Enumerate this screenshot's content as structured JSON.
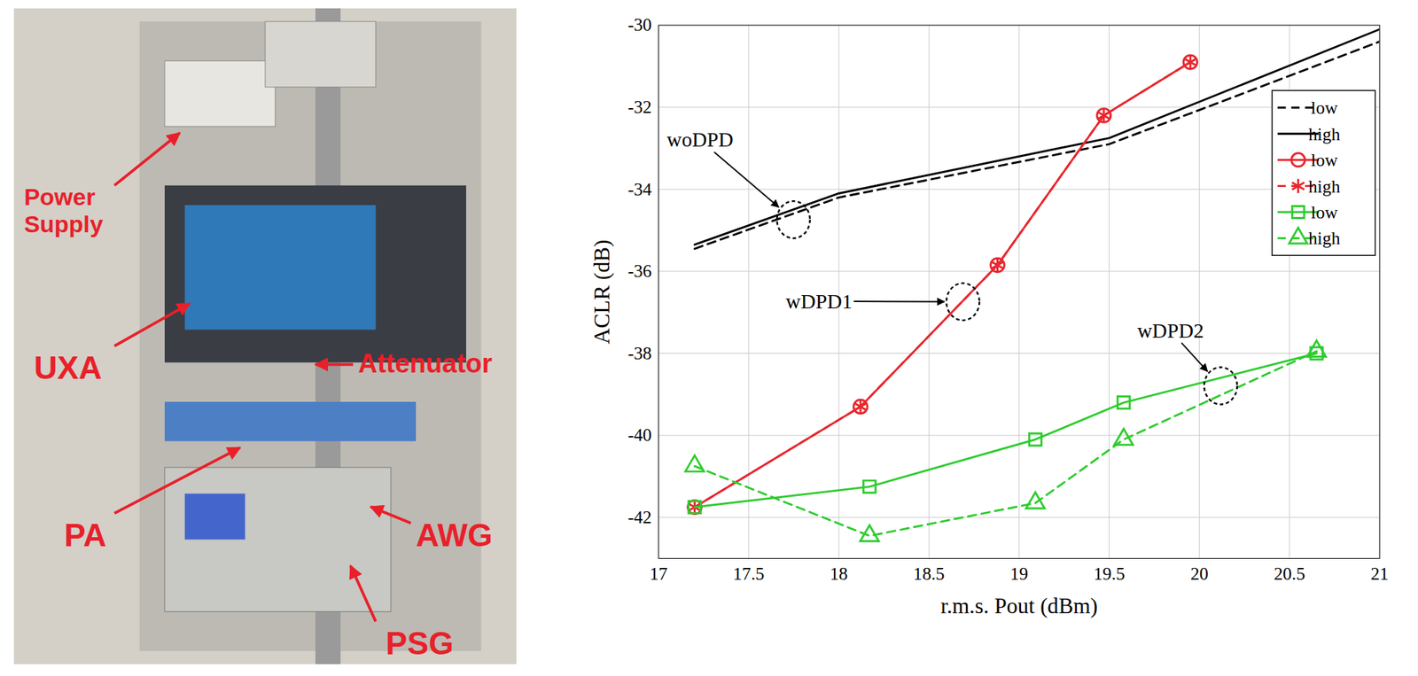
{
  "chart_data": {
    "type": "line",
    "xlabel": "r.m.s. Pout (dBm)",
    "ylabel": "ACLR (dB)",
    "xlim": [
      17,
      21
    ],
    "xticks": [
      17,
      17.5,
      18,
      18.5,
      19,
      19.5,
      20,
      20.5,
      21
    ],
    "ylim": [
      -43,
      -30
    ],
    "yticks": [
      -30,
      -32,
      -34,
      -36,
      -38,
      -40,
      -42
    ],
    "grid": true,
    "legend": "top-right",
    "series": [
      {
        "name": "low",
        "color": "#000000",
        "line_style": "dashed",
        "marker": "none",
        "x": [
          17.2,
          18.0,
          19.5,
          21.0
        ],
        "values": [
          -35.45,
          -34.2,
          -32.9,
          -30.4
        ]
      },
      {
        "name": "high",
        "color": "#000000",
        "line_style": "solid",
        "marker": "none",
        "x": [
          17.2,
          18.0,
          19.5,
          21.0
        ],
        "values": [
          -35.35,
          -34.1,
          -32.75,
          -30.1
        ]
      },
      {
        "name": "low",
        "color": "#e8262e",
        "line_style": "solid",
        "marker": "circle",
        "x": [
          17.2,
          18.12,
          18.88,
          19.47,
          19.95
        ],
        "values": [
          -41.75,
          -39.3,
          -35.85,
          -32.2,
          -30.9
        ]
      },
      {
        "name": "high",
        "color": "#e8262e",
        "line_style": "dashed",
        "marker": "asterisk",
        "x": [
          17.2,
          18.12,
          18.88,
          19.47,
          19.95
        ],
        "values": [
          -41.75,
          -39.3,
          -35.85,
          -32.2,
          -30.9
        ]
      },
      {
        "name": "low",
        "color": "#2ecc2e",
        "line_style": "solid",
        "marker": "square",
        "x": [
          17.2,
          18.17,
          19.09,
          19.58,
          20.65
        ],
        "values": [
          -41.75,
          -41.25,
          -40.1,
          -39.2,
          -38.0
        ]
      },
      {
        "name": "high",
        "color": "#2ecc2e",
        "line_style": "dashed",
        "marker": "triangle",
        "x": [
          17.2,
          18.17,
          19.09,
          19.58,
          20.65
        ],
        "values": [
          -40.75,
          -42.45,
          -41.65,
          -40.1,
          -37.95
        ]
      }
    ],
    "annotations": [
      {
        "text": "woDPD",
        "text_x": 17.23,
        "text_y": -32.8,
        "x": 17.75,
        "y": -34.75
      },
      {
        "text": "wDPD1",
        "text_x": 17.89,
        "text_y": -36.74,
        "x": 18.69,
        "y": -36.75
      },
      {
        "text": "wDPD2",
        "text_x": 19.84,
        "text_y": -37.45,
        "x": 20.12,
        "y": -38.8
      }
    ]
  },
  "photo": {
    "labels": [
      "Power Supply",
      "UXA",
      "Attenuator",
      "PA",
      "AWG",
      "PSG"
    ]
  }
}
